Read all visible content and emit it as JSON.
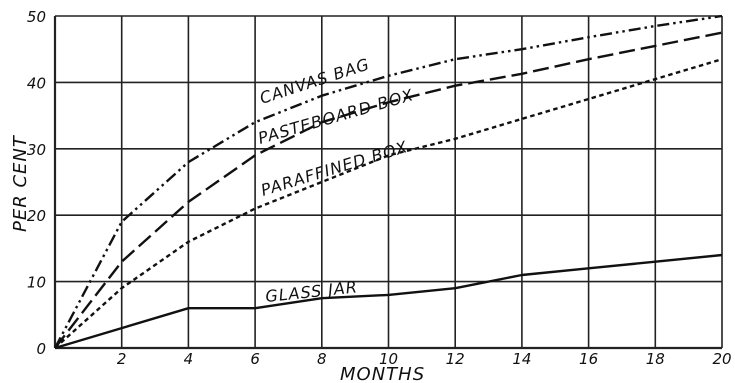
{
  "chart_data": {
    "type": "line",
    "title": "",
    "xlabel": "MONTHS",
    "ylabel": "PER CENT",
    "xlim": [
      0,
      20
    ],
    "ylim": [
      0,
      50
    ],
    "x_ticks": [
      2,
      4,
      6,
      8,
      10,
      12,
      14,
      16,
      18,
      20
    ],
    "y_ticks": [
      0,
      10,
      20,
      30,
      40,
      50
    ],
    "grid": true,
    "legend": "none",
    "series": [
      {
        "name": "CANVAS BAG",
        "style": "dash-dot-dot",
        "x": [
          0,
          2,
          4,
          6,
          8,
          10,
          12,
          14,
          16,
          18,
          20
        ],
        "y": [
          0,
          19,
          28,
          34,
          38,
          41,
          43.5,
          45,
          46.8,
          48.5,
          50
        ]
      },
      {
        "name": "PASTEBOARD BOX",
        "style": "long-dash",
        "x": [
          0,
          2,
          4,
          6,
          8,
          10,
          12,
          14,
          16,
          18,
          20
        ],
        "y": [
          0,
          13,
          22,
          29,
          34,
          37,
          39.5,
          41.3,
          43.5,
          45.5,
          47.5
        ]
      },
      {
        "name": "PARAFFINED BOX",
        "style": "short-dash",
        "x": [
          0,
          2,
          4,
          6,
          8,
          10,
          12,
          14,
          16,
          18,
          20
        ],
        "y": [
          0,
          9,
          16,
          21,
          25,
          29,
          31.5,
          34.5,
          37.5,
          40.5,
          43.5
        ]
      },
      {
        "name": "GLASS JAR",
        "style": "solid",
        "x": [
          0,
          2,
          4,
          6,
          8,
          10,
          12,
          14,
          16,
          18,
          20
        ],
        "y": [
          0,
          3,
          6,
          6,
          7.5,
          8,
          9,
          11,
          12,
          13,
          14
        ]
      }
    ]
  }
}
